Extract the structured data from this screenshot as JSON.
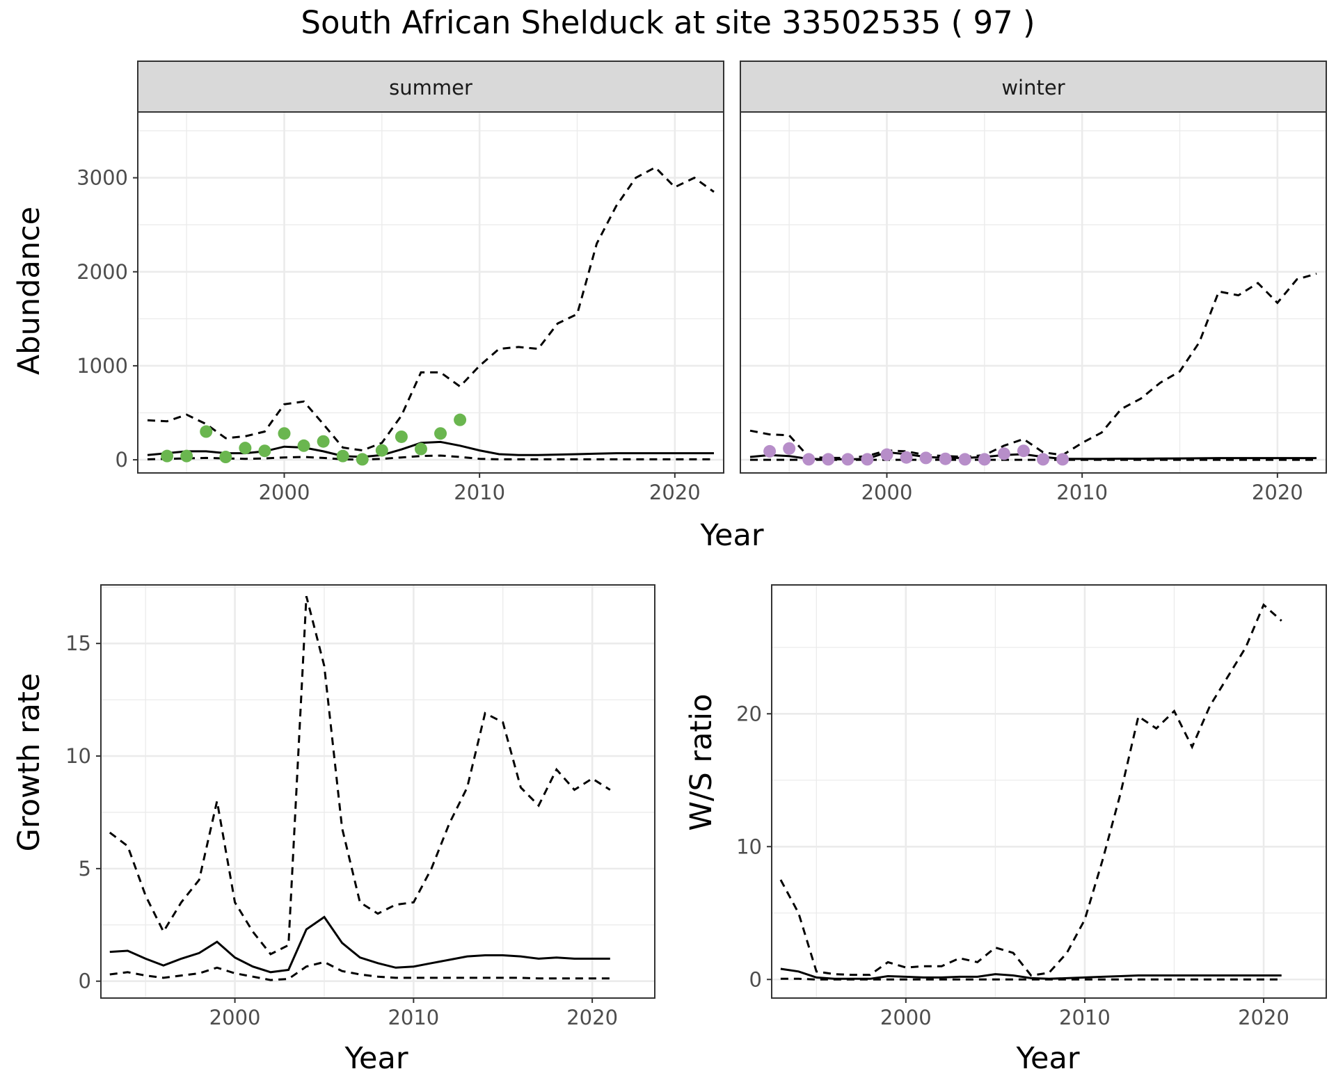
{
  "title": "South African Shelduck at site 33502535 ( 97 )",
  "colors": {
    "summer_points": "#6ab64f",
    "winter_points": "#b78ec9",
    "line": "#000000",
    "strip_bg": "#d9d9d9",
    "grid": "#ebebeb"
  },
  "chart_data": [
    {
      "id": "abundance",
      "type": "line",
      "facets": [
        "summer",
        "winter"
      ],
      "ylabel": "Abundance",
      "xlabel": "Year",
      "xlim": [
        1992.5,
        2022.5
      ],
      "ylim": [
        -140,
        3700
      ],
      "xticks": [
        2000,
        2010,
        2020
      ],
      "yticks": [
        0,
        1000,
        2000,
        3000
      ],
      "x": [
        1993,
        1994,
        1995,
        1996,
        1997,
        1998,
        1999,
        2000,
        2001,
        2002,
        2003,
        2004,
        2005,
        2006,
        2007,
        2008,
        2009,
        2010,
        2011,
        2012,
        2013,
        2014,
        2015,
        2016,
        2017,
        2018,
        2019,
        2020,
        2021,
        2022
      ],
      "series": {
        "summer": {
          "mean": [
            50,
            70,
            90,
            90,
            70,
            70,
            90,
            140,
            130,
            90,
            40,
            30,
            50,
            110,
            180,
            190,
            150,
            100,
            60,
            50,
            50,
            55,
            60,
            65,
            70,
            70,
            70,
            70,
            70,
            70
          ],
          "upper": [
            420,
            410,
            480,
            380,
            230,
            250,
            300,
            590,
            620,
            380,
            130,
            100,
            180,
            470,
            930,
            930,
            780,
            1000,
            1180,
            1200,
            1180,
            1450,
            1550,
            2300,
            2700,
            3000,
            3110,
            2900,
            3000,
            2850
          ],
          "lower": [
            5,
            10,
            15,
            20,
            15,
            10,
            15,
            25,
            30,
            20,
            5,
            2,
            10,
            25,
            40,
            45,
            30,
            10,
            5,
            5,
            5,
            5,
            5,
            5,
            5,
            5,
            5,
            5,
            5,
            5
          ],
          "points": [
            [
              1994,
              40
            ],
            [
              1995,
              40
            ],
            [
              1996,
              300
            ],
            [
              1997,
              30
            ],
            [
              1998,
              125
            ],
            [
              1999,
              95
            ],
            [
              2000,
              280
            ],
            [
              2001,
              150
            ],
            [
              2002,
              195
            ],
            [
              2003,
              40
            ],
            [
              2004,
              5
            ],
            [
              2005,
              100
            ],
            [
              2006,
              245
            ],
            [
              2007,
              115
            ],
            [
              2008,
              280
            ],
            [
              2009,
              425
            ]
          ]
        },
        "winter": {
          "mean": [
            30,
            50,
            40,
            10,
            5,
            5,
            10,
            80,
            60,
            30,
            20,
            20,
            30,
            50,
            60,
            30,
            10,
            10,
            10,
            12,
            12,
            14,
            15,
            16,
            18,
            18,
            18,
            18,
            18,
            18
          ],
          "upper": [
            310,
            270,
            260,
            30,
            20,
            20,
            40,
            100,
            90,
            50,
            40,
            30,
            50,
            150,
            220,
            80,
            50,
            180,
            290,
            540,
            650,
            820,
            940,
            1250,
            1790,
            1750,
            1880,
            1670,
            1920,
            1980
          ],
          "lower": [
            0,
            0,
            0,
            0,
            0,
            0,
            0,
            0,
            0,
            0,
            0,
            0,
            0,
            0,
            0,
            0,
            0,
            0,
            0,
            0,
            0,
            0,
            0,
            0,
            0,
            0,
            0,
            0,
            0,
            0
          ],
          "points": [
            [
              1994,
              90
            ],
            [
              1995,
              120
            ],
            [
              1996,
              5
            ],
            [
              1997,
              5
            ],
            [
              1998,
              5
            ],
            [
              1999,
              5
            ],
            [
              2000,
              55
            ],
            [
              2001,
              25
            ],
            [
              2002,
              20
            ],
            [
              2003,
              10
            ],
            [
              2004,
              5
            ],
            [
              2005,
              5
            ],
            [
              2006,
              65
            ],
            [
              2007,
              95
            ],
            [
              2008,
              5
            ],
            [
              2009,
              5
            ]
          ]
        }
      }
    },
    {
      "id": "growth",
      "type": "line",
      "ylabel": "Growth rate",
      "xlabel": "Year",
      "xlim": [
        1992.5,
        2023.5
      ],
      "ylim": [
        -0.75,
        17.6
      ],
      "xticks": [
        2000,
        2010,
        2020
      ],
      "yticks": [
        0,
        5,
        10,
        15
      ],
      "x": [
        1993,
        1994,
        1995,
        1996,
        1997,
        1998,
        1999,
        2000,
        2001,
        2002,
        2003,
        2004,
        2005,
        2006,
        2007,
        2008,
        2009,
        2010,
        2011,
        2012,
        2013,
        2014,
        2015,
        2016,
        2017,
        2018,
        2019,
        2020,
        2021
      ],
      "series": {
        "mean": [
          1.3,
          1.35,
          1.0,
          0.7,
          1.0,
          1.25,
          1.75,
          1.05,
          0.65,
          0.4,
          0.5,
          2.3,
          2.85,
          1.7,
          1.05,
          0.8,
          0.6,
          0.65,
          0.8,
          0.95,
          1.1,
          1.15,
          1.15,
          1.1,
          1.0,
          1.05,
          1.0,
          1.0,
          1.0
        ],
        "upper": [
          6.6,
          6.0,
          3.8,
          2.2,
          3.5,
          4.5,
          8.0,
          3.5,
          2.2,
          1.2,
          1.6,
          17.1,
          14.0,
          6.8,
          3.5,
          3.0,
          3.4,
          3.5,
          5.0,
          7.0,
          8.6,
          11.9,
          11.5,
          8.6,
          7.8,
          9.4,
          8.5,
          9.0,
          8.5
        ],
        "lower": [
          0.3,
          0.4,
          0.25,
          0.15,
          0.25,
          0.35,
          0.6,
          0.35,
          0.2,
          0.05,
          0.1,
          0.65,
          0.85,
          0.45,
          0.3,
          0.2,
          0.15,
          0.15,
          0.15,
          0.15,
          0.15,
          0.15,
          0.15,
          0.15,
          0.12,
          0.12,
          0.12,
          0.12,
          0.12
        ]
      }
    },
    {
      "id": "ws_ratio",
      "type": "line",
      "ylabel": "W/S ratio",
      "xlabel": "Year",
      "xlim": [
        1992.5,
        2023.5
      ],
      "ylim": [
        -1.4,
        29.7
      ],
      "xticks": [
        2000,
        2010,
        2020
      ],
      "yticks": [
        0,
        10,
        20
      ],
      "x": [
        1993,
        1994,
        1995,
        1996,
        1997,
        1998,
        1999,
        2000,
        2001,
        2002,
        2003,
        2004,
        2005,
        2006,
        2007,
        2008,
        2009,
        2010,
        2011,
        2012,
        2013,
        2014,
        2015,
        2016,
        2017,
        2018,
        2019,
        2020,
        2021
      ],
      "series": {
        "mean": [
          0.8,
          0.6,
          0.15,
          0.05,
          0.05,
          0.05,
          0.25,
          0.2,
          0.15,
          0.15,
          0.2,
          0.2,
          0.4,
          0.3,
          0.1,
          0.05,
          0.1,
          0.15,
          0.2,
          0.25,
          0.3,
          0.3,
          0.3,
          0.3,
          0.3,
          0.3,
          0.3,
          0.3,
          0.3
        ],
        "upper": [
          7.5,
          5.0,
          0.6,
          0.4,
          0.35,
          0.35,
          1.3,
          0.9,
          1.0,
          1.0,
          1.6,
          1.3,
          2.4,
          2.0,
          0.3,
          0.5,
          2.0,
          4.5,
          9.0,
          14.0,
          19.8,
          18.9,
          20.2,
          17.5,
          20.6,
          22.8,
          25.0,
          28.2,
          27.0
        ],
        "lower": [
          0.05,
          0.05,
          0.0,
          0.0,
          0.0,
          0.0,
          0.0,
          0.0,
          0.0,
          0.0,
          0.0,
          0.0,
          0.0,
          0.0,
          0.0,
          0.0,
          0.0,
          0.0,
          0.0,
          0.0,
          0.0,
          0.0,
          0.0,
          0.0,
          0.0,
          0.0,
          0.0,
          0.0,
          0.0
        ]
      }
    }
  ]
}
